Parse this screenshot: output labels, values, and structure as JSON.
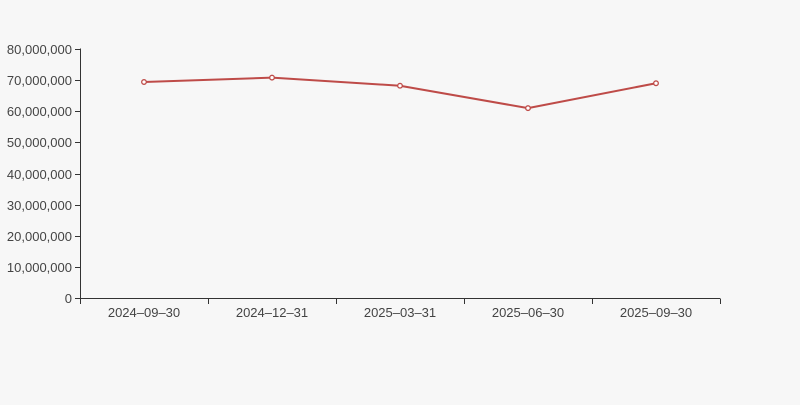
{
  "page": {
    "background_color": "#f7f7f7"
  },
  "chart_data": {
    "type": "line",
    "title": "",
    "categories": [
      "2024–09–30",
      "2024–12–31",
      "2025–03–31",
      "2025–06–30",
      "2025–09–30"
    ],
    "values": [
      69400000,
      70800000,
      68200000,
      61000000,
      69000000
    ],
    "xlabel": "",
    "ylabel": "",
    "ylim": [
      0,
      80000000
    ],
    "y_tick_interval": 10000000,
    "y_tick_labels": [
      "0",
      "10,000,000",
      "20,000,000",
      "30,000,000",
      "40,000,000",
      "50,000,000",
      "60,000,000",
      "70,000,000",
      "80,000,000"
    ],
    "grid": false,
    "legend_position": "none",
    "line_color": "#be4b48",
    "marker_fill": "#ffffff",
    "axis_color": "#333333",
    "label_color": "#444444"
  }
}
